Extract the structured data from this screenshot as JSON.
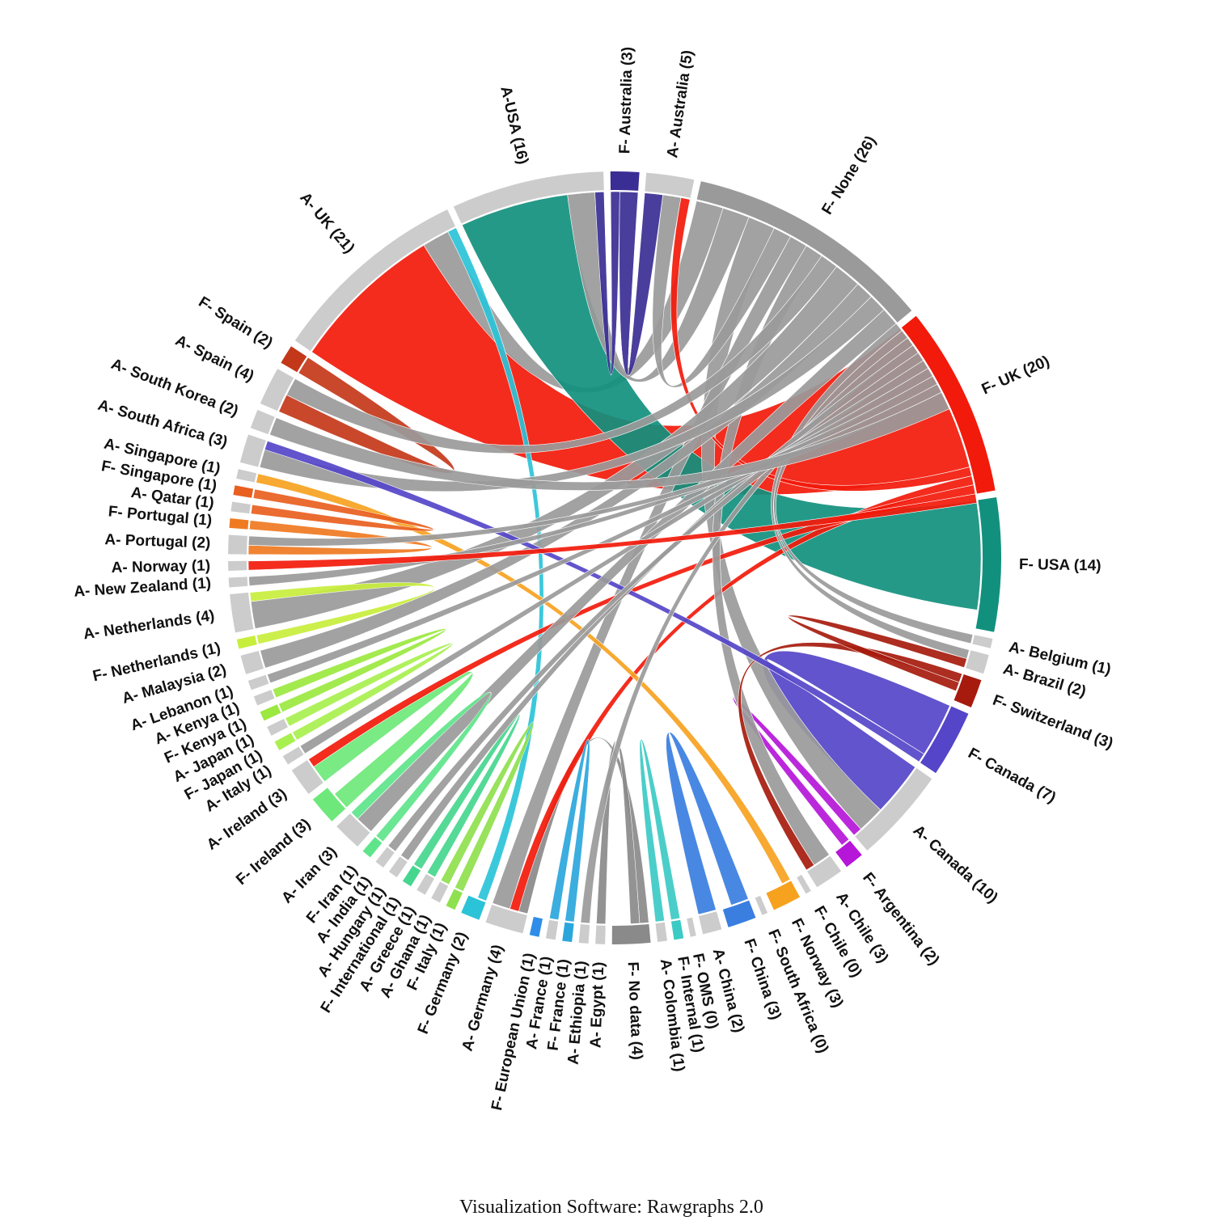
{
  "chart_data": {
    "type": "chord",
    "caption": "Visualization Software: Rawgraphs 2.0",
    "value_labels": [
      "F- Australia (3)",
      "A- Australia (5)",
      "F- None (26)",
      "F- UK (20)",
      "F- USA (14)",
      "A- Belgium (1)",
      "A- Brazil (2)",
      "F- Switzerland (3)",
      "F- Canada (7)",
      "A- Canada (10)",
      "F- Argentina (2)",
      "A- Chile (3)",
      "F- Chile (0)",
      "F- Norway (3)",
      "F- South Africa (0)",
      "F- China (3)",
      "A- China (2)",
      "F- OMS (0)",
      "F- Internal (1)",
      "A- Colombia (1)",
      "F- No data (4)",
      "A- Egypt (1)",
      "A- Ethiopia (1)",
      "F- France (1)",
      "A- France (1)",
      "F- European Union (1)",
      "A- Germany (4)",
      "F- Germany (2)",
      "F- Italy (1)",
      "A- Ghana (1)",
      "A- Greece (1)",
      "F- International (1)",
      "A- Hungary (1)",
      "A- India (1)",
      "F- Iran (1)",
      "A- Iran (3)",
      "F- Ireland (3)",
      "A- Ireland (3)",
      "A- Italy (1)",
      "F- Japan (1)",
      "A- Japan (1)",
      "F- Kenya (1)",
      "A- Kenya (1)",
      "A- Lebanon (1)",
      "A- Malaysia (2)",
      "F- Netherlands (1)",
      "A- Netherlands (4)",
      "A- New Zealand (1)",
      "A- Norway (1)",
      "A- Portugal (2)",
      "F- Portugal (1)",
      "A- Qatar (1)",
      "F- Singapore (1)",
      "A- Singapore (1)",
      "A- South Africa (3)",
      "A- South Korea (2)",
      "A- Spain (4)",
      "F- Spain (2)",
      "A- UK (21)",
      "A-USA (16)"
    ],
    "values": [
      3,
      5,
      26,
      20,
      14,
      1,
      2,
      3,
      7,
      10,
      2,
      3,
      0,
      3,
      0,
      3,
      2,
      0,
      1,
      1,
      4,
      1,
      1,
      1,
      1,
      1,
      4,
      2,
      1,
      1,
      1,
      1,
      1,
      1,
      1,
      3,
      3,
      3,
      1,
      1,
      1,
      1,
      1,
      1,
      2,
      1,
      4,
      1,
      1,
      2,
      1,
      1,
      1,
      1,
      3,
      2,
      4,
      2,
      21,
      16
    ],
    "colors": [
      "#3a2e94",
      "#cccccc",
      "#9a9a9a",
      "#f21a0b",
      "#12907e",
      "#cccccc",
      "#cccccc",
      "#a61b0d",
      "#5545c8",
      "#cccccc",
      "#b516d8",
      "#cccccc",
      "#cccccc",
      "#f6a21f",
      "#cccccc",
      "#3a7ee0",
      "#cccccc",
      "#cccccc",
      "#3ccac4",
      "#cccccc",
      "#8a8a8a",
      "#cccccc",
      "#cccccc",
      "#2ba6dc",
      "#cccccc",
      "#2e8de8",
      "#cccccc",
      "#2bc3d8",
      "#8fe04e",
      "#cccccc",
      "#cccccc",
      "#46d68e",
      "#cccccc",
      "#cccccc",
      "#5ee48a",
      "#cccccc",
      "#6ee87a",
      "#cccccc",
      "#cccccc",
      "#a8f04e",
      "#cccccc",
      "#9be840",
      "#cccccc",
      "#cccccc",
      "#cccccc",
      "#c8ee3c",
      "#cccccc",
      "#cccccc",
      "#cccccc",
      "#cccccc",
      "#ef7a22",
      "#cccccc",
      "#e85f20",
      "#cccccc",
      "#cccccc",
      "#cccccc",
      "#cccccc",
      "#c4381a",
      "#cccccc",
      "#cccccc"
    ],
    "links": [
      {
        "source": 58,
        "target": 3,
        "value": 17
      },
      {
        "source": 58,
        "target": 2,
        "value": 3
      },
      {
        "source": 58,
        "target": 27,
        "value": 1
      },
      {
        "source": 59,
        "target": 4,
        "value": 12
      },
      {
        "source": 59,
        "target": 2,
        "value": 3
      },
      {
        "source": 59,
        "target": 0,
        "value": 1
      },
      {
        "source": 9,
        "target": 8,
        "value": 6
      },
      {
        "source": 9,
        "target": 2,
        "value": 3
      },
      {
        "source": 9,
        "target": 10,
        "value": 1
      },
      {
        "source": 1,
        "target": 0,
        "value": 2
      },
      {
        "source": 1,
        "target": 2,
        "value": 2
      },
      {
        "source": 1,
        "target": 3,
        "value": 1
      },
      {
        "source": 26,
        "target": 20,
        "value": 1
      },
      {
        "source": 26,
        "target": 3,
        "value": 1
      },
      {
        "source": 26,
        "target": 2,
        "value": 2
      },
      {
        "source": 37,
        "target": 36,
        "value": 2
      },
      {
        "source": 37,
        "target": 3,
        "value": 1
      },
      {
        "source": 53,
        "target": 13,
        "value": 1
      },
      {
        "source": 11,
        "target": 2,
        "value": 2
      },
      {
        "source": 11,
        "target": 7,
        "value": 1
      },
      {
        "source": 16,
        "target": 15,
        "value": 2
      },
      {
        "source": 56,
        "target": 57,
        "value": 2
      },
      {
        "source": 56,
        "target": 2,
        "value": 2
      },
      {
        "source": 46,
        "target": 2,
        "value": 3
      },
      {
        "source": 46,
        "target": 45,
        "value": 1
      },
      {
        "source": 44,
        "target": 2,
        "value": 2
      },
      {
        "source": 54,
        "target": 2,
        "value": 2
      },
      {
        "source": 54,
        "target": 8,
        "value": 1
      },
      {
        "source": 35,
        "target": 2,
        "value": 2
      },
      {
        "source": 35,
        "target": 34,
        "value": 1
      },
      {
        "source": 6,
        "target": 2,
        "value": 1
      },
      {
        "source": 6,
        "target": 7,
        "value": 1
      },
      {
        "source": 5,
        "target": 2,
        "value": 1
      },
      {
        "source": 19,
        "target": 18,
        "value": 1
      },
      {
        "source": 21,
        "target": 20,
        "value": 1
      },
      {
        "source": 22,
        "target": 2,
        "value": 1
      },
      {
        "source": 24,
        "target": 23,
        "value": 1
      },
      {
        "source": 29,
        "target": 28,
        "value": 1
      },
      {
        "source": 30,
        "target": 31,
        "value": 1
      },
      {
        "source": 32,
        "target": 2,
        "value": 1
      },
      {
        "source": 33,
        "target": 2,
        "value": 1
      },
      {
        "source": 38,
        "target": 2,
        "value": 1
      },
      {
        "source": 40,
        "target": 39,
        "value": 1
      },
      {
        "source": 42,
        "target": 41,
        "value": 1
      },
      {
        "source": 43,
        "target": 2,
        "value": 1
      },
      {
        "source": 47,
        "target": 2,
        "value": 1
      },
      {
        "source": 48,
        "target": 3,
        "value": 1
      },
      {
        "source": 49,
        "target": 50,
        "value": 1
      },
      {
        "source": 49,
        "target": 2,
        "value": 1
      },
      {
        "source": 51,
        "target": 52,
        "value": 1
      },
      {
        "source": 55,
        "target": 2,
        "value": 2
      }
    ]
  }
}
